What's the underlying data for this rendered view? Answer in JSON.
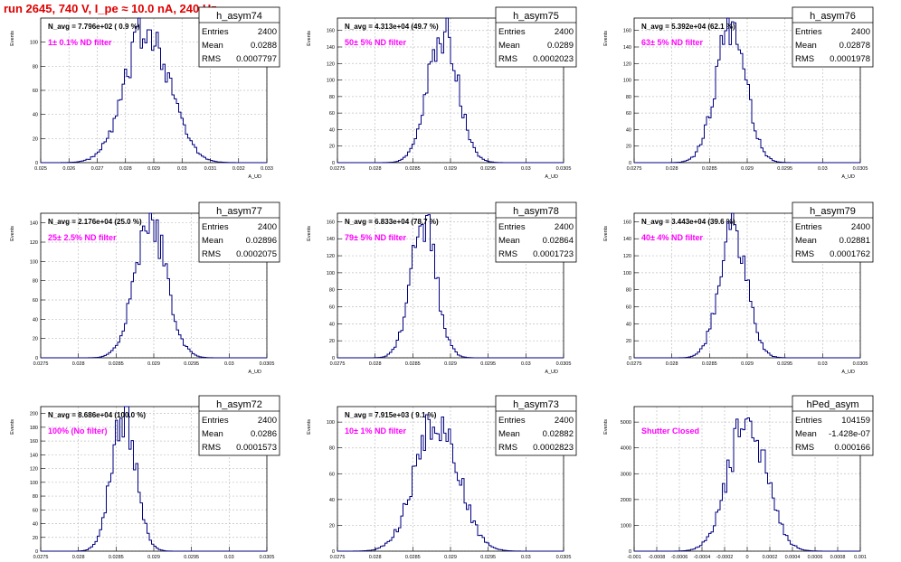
{
  "title": "run 2645,   740 V, I_pe ≈ 10.0 nA, 240 Hz",
  "colors": {
    "title": "#e00000",
    "histogram": "#000080",
    "annotation": "#ff00ff",
    "grid": "#c0c0c0"
  },
  "chart_data": [
    {
      "type": "histogram",
      "name": "h_asym74",
      "navg": "N_avg = 7.796e+02 ( 0.9 %)",
      "annotation": "1± 0.1% ND filter",
      "stats": {
        "entries_label": "Entries",
        "entries": "2400",
        "mean_label": "Mean",
        "mean": "0.0288",
        "rms_label": "RMS",
        "rms": "0.0007797"
      },
      "xlabel": "A_UD",
      "ylabel": "Events",
      "xlim": [
        0.025,
        0.033
      ],
      "ylim": [
        0,
        120
      ],
      "xticks": [
        0.025,
        0.026,
        0.027,
        0.028,
        0.029,
        0.03,
        0.031,
        0.032,
        0.033
      ],
      "xticklabels": [
        "0.025",
        "0.026",
        "0.027",
        "0.028",
        "0.029",
        "0.03",
        "0.031",
        "0.032",
        "0.033"
      ],
      "yticks": [
        0,
        20,
        40,
        60,
        80,
        100
      ],
      "grid": true,
      "peak_y": 115,
      "center": 0.0288,
      "sigma": 0.00078
    },
    {
      "type": "histogram",
      "name": "h_asym75",
      "navg": "N_avg = 4.313e+04 (49.7 %)",
      "annotation": "50± 5% ND filter",
      "stats": {
        "entries_label": "Entries",
        "entries": "2400",
        "mean_label": "Mean",
        "mean": "0.0289",
        "rms_label": "RMS",
        "rms": "0.0002023"
      },
      "xlabel": "A_UD",
      "ylabel": "Events",
      "xlim": [
        0.0275,
        0.0305
      ],
      "ylim": [
        0,
        175
      ],
      "xticks": [
        0.0275,
        0.028,
        0.0285,
        0.029,
        0.0295,
        0.03,
        0.0305
      ],
      "xticklabels": [
        "0.0275",
        "0.028",
        "0.0285",
        "0.029",
        "0.0295",
        "0.03",
        "0.0305"
      ],
      "yticks": [
        0,
        20,
        40,
        60,
        80,
        100,
        120,
        140,
        160
      ],
      "grid": true,
      "peak_y": 160,
      "center": 0.0289,
      "sigma": 0.0002
    },
    {
      "type": "histogram",
      "name": "h_asym76",
      "navg": "N_avg = 5.392e+04 (62.1 %)",
      "annotation": "63± 5% ND filter",
      "stats": {
        "entries_label": "Entries",
        "entries": "2400",
        "mean_label": "Mean",
        "mean": "0.02878",
        "rms_label": "RMS",
        "rms": "0.0001978"
      },
      "xlabel": "A_UD",
      "ylabel": "Events",
      "xlim": [
        0.0275,
        0.0305
      ],
      "ylim": [
        0,
        175
      ],
      "xticks": [
        0.0275,
        0.028,
        0.0285,
        0.029,
        0.0295,
        0.03,
        0.0305
      ],
      "xticklabels": [
        "0.0275",
        "0.028",
        "0.0285",
        "0.029",
        "0.0295",
        "0.03",
        "0.0305"
      ],
      "yticks": [
        0,
        20,
        40,
        60,
        80,
        100,
        120,
        140,
        160
      ],
      "grid": true,
      "peak_y": 165,
      "center": 0.02878,
      "sigma": 0.0002
    },
    {
      "type": "histogram",
      "name": "h_asym77",
      "navg": "N_avg = 2.176e+04 (25.0 %)",
      "annotation": "25± 2.5% ND filter",
      "stats": {
        "entries_label": "Entries",
        "entries": "2400",
        "mean_label": "Mean",
        "mean": "0.02896",
        "rms_label": "RMS",
        "rms": "0.0002075"
      },
      "xlabel": "A_UD",
      "ylabel": "Events",
      "xlim": [
        0.0275,
        0.0305
      ],
      "ylim": [
        0,
        150
      ],
      "xticks": [
        0.0275,
        0.028,
        0.0285,
        0.029,
        0.0295,
        0.03,
        0.0305
      ],
      "xticklabels": [
        "0.0275",
        "0.028",
        "0.0285",
        "0.029",
        "0.0295",
        "0.03",
        "0.0305"
      ],
      "yticks": [
        0,
        20,
        40,
        60,
        80,
        100,
        120,
        140
      ],
      "grid": true,
      "peak_y": 145,
      "center": 0.02896,
      "sigma": 0.00021
    },
    {
      "type": "histogram",
      "name": "h_asym78",
      "navg": "N_avg = 6.833e+04 (78.7 %)",
      "annotation": "79± 5% ND filter",
      "stats": {
        "entries_label": "Entries",
        "entries": "2400",
        "mean_label": "Mean",
        "mean": "0.02864",
        "rms_label": "RMS",
        "rms": "0.0001723"
      },
      "xlabel": "A_UD",
      "ylabel": "Events",
      "xlim": [
        0.0275,
        0.0305
      ],
      "ylim": [
        0,
        170
      ],
      "xticks": [
        0.0275,
        0.028,
        0.0285,
        0.029,
        0.0295,
        0.03,
        0.0305
      ],
      "xticklabels": [
        "0.0275",
        "0.028",
        "0.0285",
        "0.029",
        "0.0295",
        "0.03",
        "0.0305"
      ],
      "yticks": [
        0,
        20,
        40,
        60,
        80,
        100,
        120,
        140,
        160
      ],
      "grid": true,
      "peak_y": 162,
      "center": 0.02864,
      "sigma": 0.00017
    },
    {
      "type": "histogram",
      "name": "h_asym79",
      "navg": "N_avg = 3.443e+04 (39.6 %)",
      "annotation": "40± 4% ND filter",
      "stats": {
        "entries_label": "Entries",
        "entries": "2400",
        "mean_label": "Mean",
        "mean": "0.02881",
        "rms_label": "RMS",
        "rms": "0.0001762"
      },
      "xlabel": "A_UD",
      "ylabel": "Events",
      "xlim": [
        0.0275,
        0.0305
      ],
      "ylim": [
        0,
        170
      ],
      "xticks": [
        0.0275,
        0.028,
        0.0285,
        0.029,
        0.0295,
        0.03,
        0.0305
      ],
      "xticklabels": [
        "0.0275",
        "0.028",
        "0.0285",
        "0.029",
        "0.0295",
        "0.03",
        "0.0305"
      ],
      "yticks": [
        0,
        20,
        40,
        60,
        80,
        100,
        120,
        140,
        160
      ],
      "grid": true,
      "peak_y": 160,
      "center": 0.02881,
      "sigma": 0.00018
    },
    {
      "type": "histogram",
      "name": "h_asym72",
      "navg": "N_avg = 8.686e+04 (100.0 %)",
      "annotation": "100% (No filter)",
      "stats": {
        "entries_label": "Entries",
        "entries": "2400",
        "mean_label": "Mean",
        "mean": "0.0286",
        "rms_label": "RMS",
        "rms": "0.0001573"
      },
      "xlabel": "A_UD",
      "ylabel": "Events",
      "xlim": [
        0.0275,
        0.0305
      ],
      "ylim": [
        0,
        210
      ],
      "xticks": [
        0.0275,
        0.028,
        0.0285,
        0.029,
        0.0295,
        0.03,
        0.0305
      ],
      "xticklabels": [
        "0.0275",
        "0.028",
        "0.0285",
        "0.029",
        "0.0295",
        "0.03",
        "0.0305"
      ],
      "yticks": [
        0,
        20,
        40,
        60,
        80,
        100,
        120,
        140,
        160,
        180,
        200
      ],
      "grid": true,
      "peak_y": 205,
      "center": 0.0286,
      "sigma": 0.00016
    },
    {
      "type": "histogram",
      "name": "h_asym73",
      "navg": "N_avg = 7.915e+03 ( 9.1 %)",
      "annotation": "10± 1% ND filter",
      "stats": {
        "entries_label": "Entries",
        "entries": "2400",
        "mean_label": "Mean",
        "mean": "0.02882",
        "rms_label": "RMS",
        "rms": "0.0002823"
      },
      "xlabel": "A_UD",
      "ylabel": "Events",
      "xlim": [
        0.0275,
        0.0305
      ],
      "ylim": [
        0,
        112
      ],
      "xticks": [
        0.0275,
        0.028,
        0.0285,
        0.029,
        0.0295,
        0.03,
        0.0305
      ],
      "xticklabels": [
        "0.0275",
        "0.028",
        "0.0285",
        "0.029",
        "0.0295",
        "0.03",
        "0.0305"
      ],
      "yticks": [
        0,
        20,
        40,
        60,
        80,
        100
      ],
      "grid": true,
      "peak_y": 108,
      "center": 0.02882,
      "sigma": 0.00028
    },
    {
      "type": "histogram",
      "name": "hPed_asym",
      "navg": "",
      "annotation": "Shutter Closed",
      "stats": {
        "entries_label": "Entries",
        "entries": "104159",
        "mean_label": "Mean",
        "mean": "-1.428e-07",
        "rms_label": "RMS",
        "rms": "0.000166"
      },
      "xlabel": "",
      "ylabel": "Events",
      "xlim": [
        -0.001,
        0.001
      ],
      "ylim": [
        0,
        5600
      ],
      "xticks": [
        -0.001,
        -0.0008,
        -0.0006,
        -0.0004,
        -0.0002,
        0,
        0.0002,
        0.0004,
        0.0006,
        0.0008,
        0.001
      ],
      "xticklabels": [
        "-0.001",
        "-0.0008",
        "-0.0006",
        "-0.0004",
        "-0.0002",
        "0",
        "0.0002",
        "0.0004",
        "0.0006",
        "0.0008",
        "0.001"
      ],
      "yticks": [
        0,
        1000,
        2000,
        3000,
        4000,
        5000
      ],
      "grid": true,
      "peak_y": 5200,
      "center": 0.0,
      "sigma": 0.000166
    }
  ]
}
